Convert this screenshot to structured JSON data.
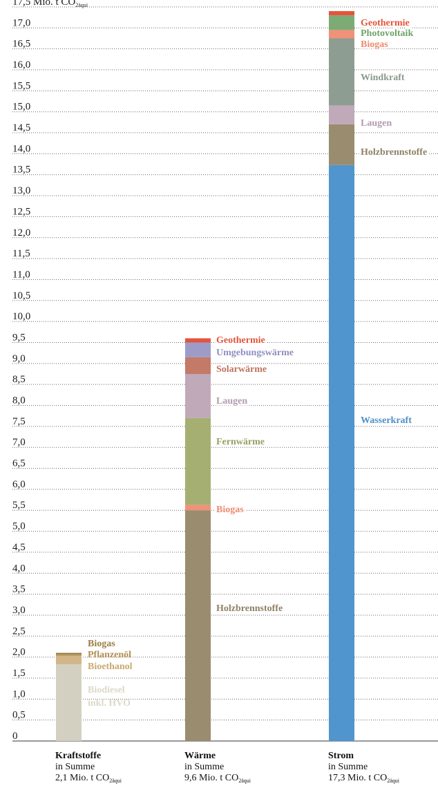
{
  "chart_data": {
    "type": "bar",
    "stacked": true,
    "unit_label": "Mio. t CO",
    "unit_sub": "2äqui",
    "ylim": [
      0,
      17.5
    ],
    "yticks": [
      "0",
      "0,5",
      "1,0",
      "1,5",
      "2,0",
      "2,5",
      "3,0",
      "3,5",
      "4,0",
      "4,5",
      "5,0",
      "5,5",
      "6,0",
      "6,5",
      "7,0",
      "7,5",
      "8,0",
      "8,5",
      "9,0",
      "9,5",
      "10,0",
      "10,5",
      "11,0",
      "11,5",
      "12,0",
      "12,5",
      "13,0",
      "13,5",
      "14,0",
      "14,5",
      "15,0",
      "15,5",
      "16,0",
      "16,5",
      "17,0",
      "17,5"
    ],
    "grid": "dotted horizontal",
    "bars": [
      {
        "name": "Kraftstoffe",
        "sum_line1": "in Summe",
        "sum_line2": "2,1 Mio. t CO",
        "sum_sub": "2äqui",
        "total": 2.1,
        "segments": [
          {
            "name": "Biodiesel inkl. HVO",
            "lines": [
              "Biodiesel",
              "inkl. HVO"
            ],
            "value": 1.83,
            "color": "#d4d0c1",
            "label_color": "#ddd8c8"
          },
          {
            "name": "Bioethanol",
            "lines": [
              "Bioethanol"
            ],
            "value": 0.2,
            "color": "#d2b688",
            "label_color": "#c9a96e"
          },
          {
            "name": "Pflanzenöl",
            "lines": [
              "Pflanzenöl"
            ],
            "value": 0.04,
            "color": "#b89657",
            "label_color": "#b18e50"
          },
          {
            "name": "Biogas",
            "lines": [
              "Biogas"
            ],
            "value": 0.03,
            "color": "#8d7640",
            "label_color": "#9a7e42"
          }
        ]
      },
      {
        "name": "Wärme",
        "sum_line1": "in Summe",
        "sum_line2": "9,6 Mio. t CO",
        "sum_sub": "2äqui",
        "total": 9.6,
        "segments": [
          {
            "name": "Holzbrennstoffe",
            "lines": [
              "Holzbrennstoffe"
            ],
            "value": 5.5,
            "color": "#9a8c6e",
            "label_color": "#8e8164"
          },
          {
            "name": "Biogas",
            "lines": [
              "Biogas"
            ],
            "value": 0.13,
            "color": "#f0927a",
            "label_color": "#ec8b70"
          },
          {
            "name": "Fernwärme",
            "lines": [
              "Fernwärme"
            ],
            "value": 2.07,
            "color": "#a5af72",
            "label_color": "#97a064"
          },
          {
            "name": "Laugen",
            "lines": [
              "Laugen"
            ],
            "value": 1.05,
            "color": "#c0a9b9",
            "label_color": "#b29bb0"
          },
          {
            "name": "Solarwärme",
            "lines": [
              "Solarwärme"
            ],
            "value": 0.4,
            "color": "#c37a67",
            "label_color": "#c0735f"
          },
          {
            "name": "Umgebungswärme",
            "lines": [
              "Umgebungswärme"
            ],
            "value": 0.35,
            "color": "#9d9cc9",
            "label_color": "#8f8ec0"
          },
          {
            "name": "Geothermie",
            "lines": [
              "Geothermie"
            ],
            "value": 0.1,
            "color": "#e4543b",
            "label_color": "#e4543b"
          }
        ]
      },
      {
        "name": "Strom",
        "sum_line1": "in Summe",
        "sum_line2": "17,3 Mio. t CO",
        "sum_sub": "2äqui",
        "total": 17.3,
        "segments": [
          {
            "name": "Wasserkraft",
            "lines": [
              "Wasserkraft"
            ],
            "value": 13.73,
            "color": "#5095cd",
            "label_color": "#4e8fc6"
          },
          {
            "name": "Holzbrennstoffe",
            "lines": [
              "Holzbrennstoffe"
            ],
            "value": 0.97,
            "color": "#9a8c6e",
            "label_color": "#8e8164"
          },
          {
            "name": "Laugen",
            "lines": [
              "Laugen"
            ],
            "value": 0.45,
            "color": "#c0a9b9",
            "label_color": "#b29bb0"
          },
          {
            "name": "Windkraft",
            "lines": [
              "Windkraft"
            ],
            "value": 1.6,
            "color": "#8e9d92",
            "label_color": "#8a9a8e"
          },
          {
            "name": "Biogas",
            "lines": [
              "Biogas"
            ],
            "value": 0.2,
            "color": "#f0927a",
            "label_color": "#ec8b70"
          },
          {
            "name": "Photovoltaik",
            "lines": [
              "Photovoltaik"
            ],
            "value": 0.35,
            "color": "#7dab76",
            "label_color": "#6ea367"
          },
          {
            "name": "Geothermie",
            "lines": [
              "Geothermie"
            ],
            "value": 0.1,
            "color": "#e4543b",
            "label_color": "#e4543b"
          }
        ]
      }
    ]
  }
}
